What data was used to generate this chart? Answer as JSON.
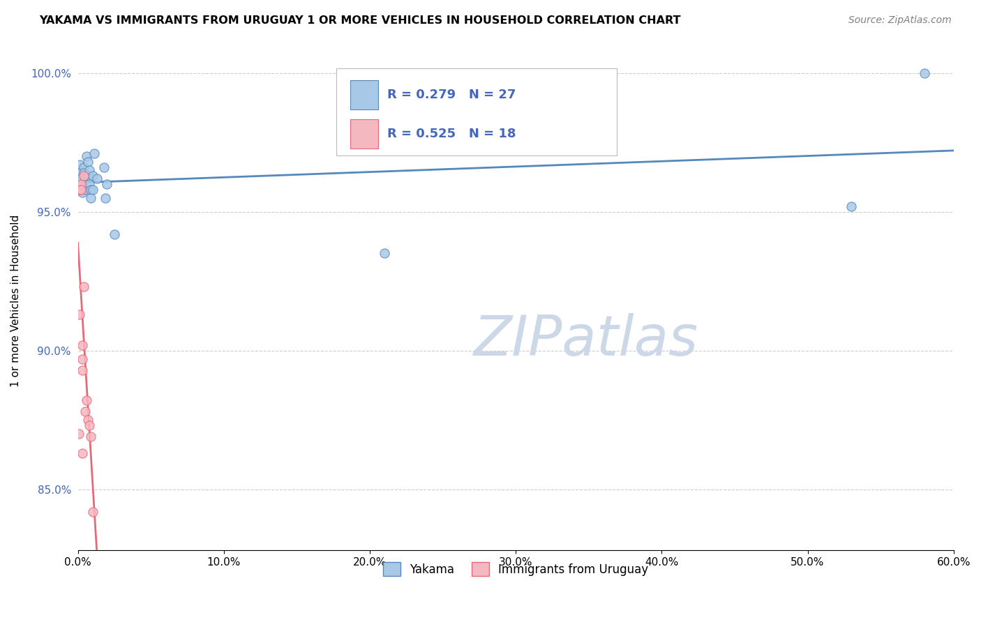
{
  "title": "YAKAMA VS IMMIGRANTS FROM URUGUAY 1 OR MORE VEHICLES IN HOUSEHOLD CORRELATION CHART",
  "source": "Source: ZipAtlas.com",
  "ylabel": "1 or more Vehicles in Household",
  "xlim": [
    0.0,
    0.6
  ],
  "ylim": [
    0.828,
    1.008
  ],
  "yticks": [
    0.85,
    0.9,
    0.95,
    1.0
  ],
  "ytick_labels": [
    "85.0%",
    "90.0%",
    "95.0%",
    "100.0%"
  ],
  "xticks": [
    0.0,
    0.1,
    0.2,
    0.3,
    0.4,
    0.5,
    0.6
  ],
  "xtick_labels": [
    "0.0%",
    "10.0%",
    "20.0%",
    "30.0%",
    "40.0%",
    "50.0%",
    "60.0%"
  ],
  "blue_color": "#a8c8e8",
  "pink_color": "#f4b8c0",
  "blue_line_color": "#5588bb",
  "pink_line_color": "#e86878",
  "blue_edge": "#5588bb",
  "pink_edge": "#e86878",
  "R_blue": 0.279,
  "N_blue": 27,
  "R_pink": 0.525,
  "N_pink": 18,
  "blue_points_x": [
    0.001,
    0.001,
    0.002,
    0.003,
    0.003,
    0.004,
    0.004,
    0.005,
    0.005,
    0.006,
    0.007,
    0.007,
    0.008,
    0.008,
    0.009,
    0.009,
    0.01,
    0.01,
    0.011,
    0.013,
    0.018,
    0.019,
    0.02,
    0.025,
    0.21,
    0.53,
    0.58
  ],
  "blue_points_y": [
    0.967,
    0.964,
    0.962,
    0.96,
    0.957,
    0.966,
    0.964,
    0.962,
    0.958,
    0.97,
    0.968,
    0.963,
    0.965,
    0.96,
    0.958,
    0.955,
    0.963,
    0.958,
    0.971,
    0.962,
    0.966,
    0.955,
    0.96,
    0.942,
    0.935,
    0.952,
    1.0
  ],
  "pink_points_x": [
    0.0005,
    0.001,
    0.001,
    0.001,
    0.002,
    0.002,
    0.003,
    0.003,
    0.003,
    0.003,
    0.004,
    0.004,
    0.005,
    0.006,
    0.007,
    0.008,
    0.009,
    0.01
  ],
  "pink_points_y": [
    0.87,
    0.958,
    0.958,
    0.913,
    0.96,
    0.958,
    0.902,
    0.897,
    0.893,
    0.863,
    0.963,
    0.923,
    0.878,
    0.882,
    0.875,
    0.873,
    0.869,
    0.842
  ],
  "watermark": "ZIPatlas",
  "watermark_color": "#ccd8e8",
  "legend_blue_label": "Yakama",
  "legend_pink_label": "Immigrants from Uruguay",
  "stat_text_color": "#4466bb",
  "background_color": "#ffffff",
  "grid_color": "#cccccc"
}
